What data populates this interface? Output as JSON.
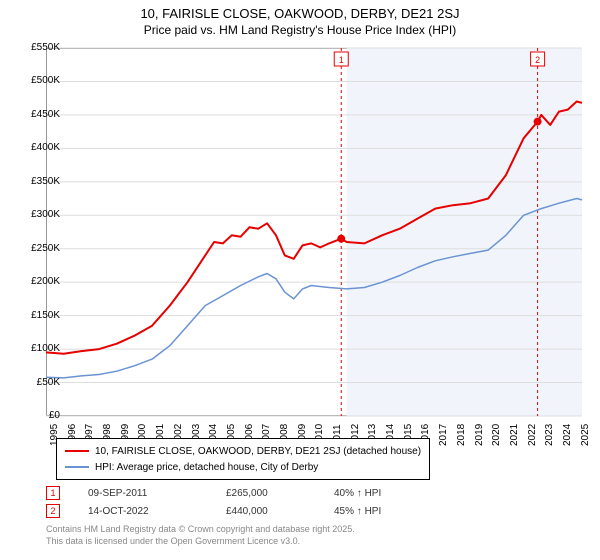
{
  "title_line1": "10, FAIRISLE CLOSE, OAKWOOD, DERBY, DE21 2SJ",
  "title_line2": "Price paid vs. HM Land Registry's House Price Index (HPI)",
  "chart": {
    "type": "line",
    "background_color": "#ffffff",
    "shaded_region": {
      "x_start": 2012.0,
      "x_end": 2025.3,
      "fill": "#f1f5fb"
    },
    "border_color": "#999999",
    "xlim": [
      1995,
      2025.3
    ],
    "ylim": [
      0,
      550000
    ],
    "ytick_step": 50000,
    "yticks": [
      "£0",
      "£50K",
      "£100K",
      "£150K",
      "£200K",
      "£250K",
      "£300K",
      "£350K",
      "£400K",
      "£450K",
      "£500K",
      "£550K"
    ],
    "xticks": [
      1995,
      1996,
      1997,
      1998,
      1999,
      2000,
      2001,
      2002,
      2003,
      2004,
      2005,
      2006,
      2007,
      2008,
      2009,
      2010,
      2011,
      2012,
      2013,
      2014,
      2015,
      2016,
      2017,
      2018,
      2019,
      2020,
      2021,
      2022,
      2023,
      2024,
      2025
    ],
    "grid_color": "#dddddd",
    "tick_font_size": 10,
    "series": [
      {
        "name": "property",
        "label": "10, FAIRISLE CLOSE, OAKWOOD, DERBY, DE21 2SJ (detached house)",
        "color": "#e60000",
        "line_width": 2,
        "data": [
          [
            1995,
            95000
          ],
          [
            1996,
            93000
          ],
          [
            1997,
            97000
          ],
          [
            1998,
            100000
          ],
          [
            1999,
            108000
          ],
          [
            2000,
            120000
          ],
          [
            2001,
            135000
          ],
          [
            2002,
            165000
          ],
          [
            2003,
            200000
          ],
          [
            2004,
            240000
          ],
          [
            2004.5,
            260000
          ],
          [
            2005,
            258000
          ],
          [
            2005.5,
            270000
          ],
          [
            2006,
            268000
          ],
          [
            2006.5,
            282000
          ],
          [
            2007,
            280000
          ],
          [
            2007.5,
            288000
          ],
          [
            2008,
            270000
          ],
          [
            2008.5,
            240000
          ],
          [
            2009,
            235000
          ],
          [
            2009.5,
            255000
          ],
          [
            2010,
            258000
          ],
          [
            2010.5,
            252000
          ],
          [
            2011,
            258000
          ],
          [
            2011.69,
            265000
          ],
          [
            2012,
            260000
          ],
          [
            2013,
            258000
          ],
          [
            2014,
            270000
          ],
          [
            2015,
            280000
          ],
          [
            2016,
            295000
          ],
          [
            2017,
            310000
          ],
          [
            2018,
            315000
          ],
          [
            2019,
            318000
          ],
          [
            2020,
            325000
          ],
          [
            2021,
            360000
          ],
          [
            2022,
            415000
          ],
          [
            2022.79,
            440000
          ],
          [
            2023,
            450000
          ],
          [
            2023.5,
            435000
          ],
          [
            2024,
            455000
          ],
          [
            2024.5,
            458000
          ],
          [
            2025,
            470000
          ],
          [
            2025.3,
            468000
          ]
        ]
      },
      {
        "name": "hpi",
        "label": "HPI: Average price, detached house, City of Derby",
        "color": "#6a93d4",
        "line_width": 1.5,
        "data": [
          [
            1995,
            58000
          ],
          [
            1996,
            57000
          ],
          [
            1997,
            60000
          ],
          [
            1998,
            62000
          ],
          [
            1999,
            67000
          ],
          [
            2000,
            75000
          ],
          [
            2001,
            85000
          ],
          [
            2002,
            105000
          ],
          [
            2003,
            135000
          ],
          [
            2004,
            165000
          ],
          [
            2005,
            180000
          ],
          [
            2006,
            195000
          ],
          [
            2007,
            208000
          ],
          [
            2007.5,
            213000
          ],
          [
            2008,
            205000
          ],
          [
            2008.5,
            185000
          ],
          [
            2009,
            175000
          ],
          [
            2009.5,
            190000
          ],
          [
            2010,
            195000
          ],
          [
            2011,
            192000
          ],
          [
            2012,
            190000
          ],
          [
            2013,
            192000
          ],
          [
            2014,
            200000
          ],
          [
            2015,
            210000
          ],
          [
            2016,
            222000
          ],
          [
            2017,
            232000
          ],
          [
            2018,
            238000
          ],
          [
            2019,
            243000
          ],
          [
            2020,
            248000
          ],
          [
            2021,
            270000
          ],
          [
            2022,
            300000
          ],
          [
            2023,
            310000
          ],
          [
            2024,
            318000
          ],
          [
            2025,
            325000
          ],
          [
            2025.3,
            323000
          ]
        ]
      }
    ],
    "event_markers": [
      {
        "id": "1",
        "x": 2011.69,
        "y": 265000,
        "line_color": "#e60000",
        "box_border": "#e60000",
        "date": "09-SEP-2011",
        "price": "£265,000",
        "hpi_delta": "40% ↑ HPI"
      },
      {
        "id": "2",
        "x": 2022.79,
        "y": 440000,
        "line_color": "#e60000",
        "box_border": "#e60000",
        "date": "14-OCT-2022",
        "price": "£440,000",
        "hpi_delta": "45% ↑ HPI"
      }
    ],
    "event_line_dash": "3,3",
    "event_dot_radius": 4
  },
  "legend": {
    "border_color": "#000000",
    "rows": [
      {
        "color": "#e60000",
        "width": 2,
        "label_path": "chart.series.0.label"
      },
      {
        "color": "#6a93d4",
        "width": 1.5,
        "label_path": "chart.series.1.label"
      }
    ]
  },
  "footer_line1": "Contains HM Land Registry data © Crown copyright and database right 2025.",
  "footer_line2": "This data is licensed under the Open Government Licence v3.0."
}
